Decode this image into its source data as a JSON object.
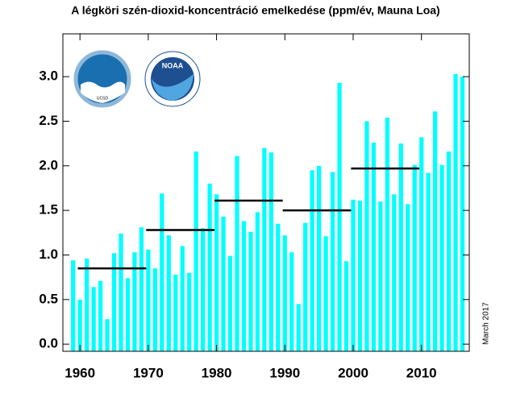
{
  "chart_data": {
    "type": "bar",
    "title": "A légköri szén-dioxid-koncentráció emelkedése (ppm/év, Mauna Loa)",
    "annotation": "March 2017",
    "logo_texts": [
      "NOAA",
      "UCSD"
    ],
    "color": "#00ffff",
    "line_color": "#000000",
    "x": [
      1959,
      1960,
      1961,
      1962,
      1963,
      1964,
      1965,
      1966,
      1967,
      1968,
      1969,
      1970,
      1971,
      1972,
      1973,
      1974,
      1975,
      1976,
      1977,
      1978,
      1979,
      1980,
      1981,
      1982,
      1983,
      1984,
      1985,
      1986,
      1987,
      1988,
      1989,
      1990,
      1991,
      1992,
      1993,
      1994,
      1995,
      1996,
      1997,
      1998,
      1999,
      2000,
      2001,
      2002,
      2003,
      2004,
      2005,
      2006,
      2007,
      2008,
      2009,
      2010,
      2011,
      2012,
      2013,
      2014,
      2015,
      2016
    ],
    "values": [
      0.94,
      0.5,
      0.96,
      0.64,
      0.71,
      0.28,
      1.02,
      1.24,
      0.74,
      1.03,
      1.31,
      1.06,
      0.85,
      1.69,
      1.22,
      0.78,
      1.1,
      0.8,
      2.16,
      1.3,
      1.8,
      1.68,
      1.43,
      0.99,
      2.11,
      1.38,
      1.26,
      1.48,
      2.2,
      2.15,
      1.35,
      1.22,
      1.03,
      0.45,
      1.36,
      1.95,
      2.0,
      1.21,
      1.93,
      2.93,
      0.93,
      1.62,
      1.61,
      2.5,
      2.26,
      1.6,
      2.54,
      1.68,
      2.25,
      1.57,
      2.01,
      2.32,
      1.92,
      2.61,
      2.01,
      2.16,
      3.03,
      3.0
    ],
    "decade_averages": [
      {
        "start": 1960,
        "end": 1970,
        "value": 0.85
      },
      {
        "start": 1970,
        "end": 1980,
        "value": 1.28
      },
      {
        "start": 1980,
        "end": 1990,
        "value": 1.61
      },
      {
        "start": 1990,
        "end": 2000,
        "value": 1.5
      },
      {
        "start": 2000,
        "end": 2010,
        "value": 1.97
      }
    ],
    "xlim": [
      1957.5,
      2017
    ],
    "xticks": [
      1960,
      1970,
      1980,
      1990,
      2000,
      2010
    ],
    "ylim": [
      -0.08,
      3.48
    ],
    "yticks": [
      {
        "value": 0,
        "label": "0.0"
      },
      {
        "value": 0.5,
        "label": "0.5"
      },
      {
        "value": 1,
        "label": "1.0"
      },
      {
        "value": 1.5,
        "label": "1.5"
      },
      {
        "value": 2,
        "label": "2.0"
      },
      {
        "value": 2.5,
        "label": "2.5"
      },
      {
        "value": 3,
        "label": "3.0"
      }
    ]
  }
}
